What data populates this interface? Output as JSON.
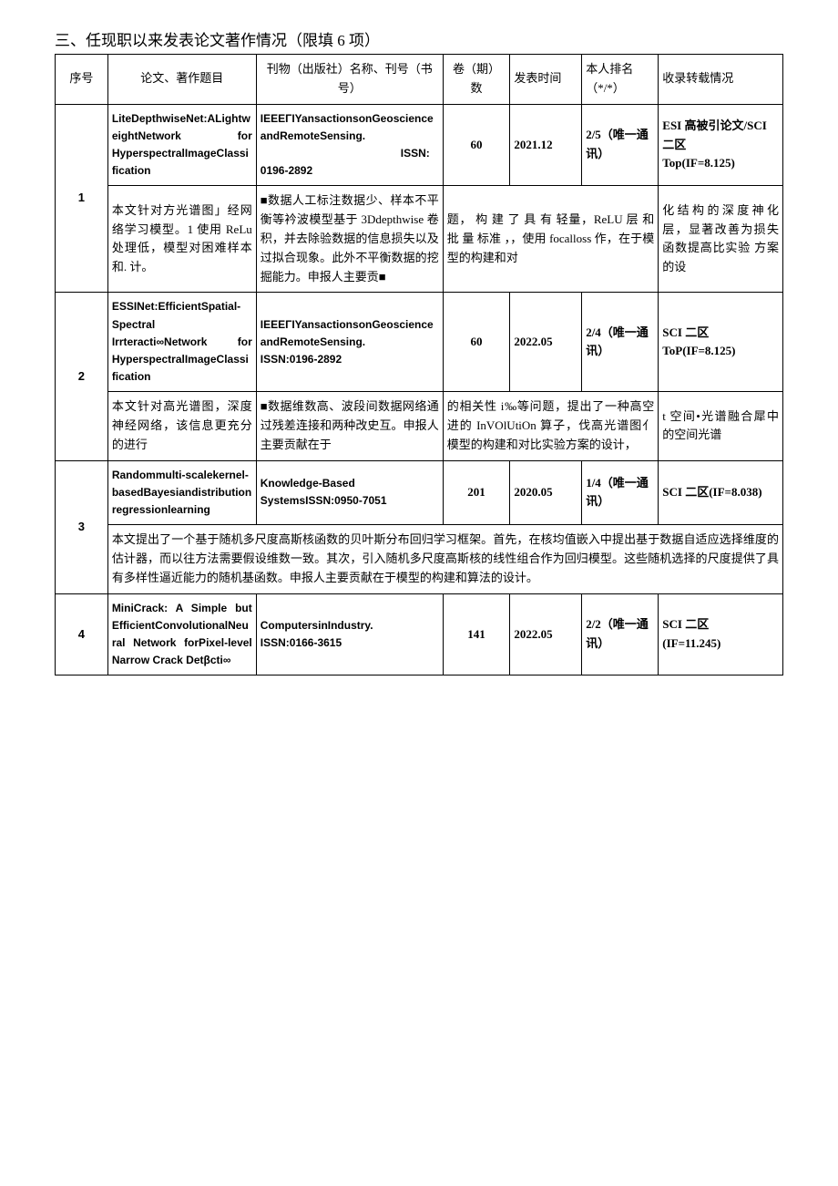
{
  "section_title": "三、任现职以来发表论文著作情况（限填 6 项）",
  "headers": {
    "no": "序号",
    "title": "论文、著作题目",
    "journal": "刊物（出版社）名称、刊号（书号）",
    "volume": "卷（期）数",
    "date": "发表时间",
    "rank": "本人排名（*/*）",
    "index": "收录转载情况"
  },
  "rows": [
    {
      "no": "1",
      "title": "LiteDepthwiseNet:ALightweightNetwork for HyperspectralImageClassification",
      "journal_line1": "IEEEΓIYansactionsonGeoscienceandRemoteSensing.",
      "journal_issn_label": "ISSN:",
      "journal_issn": "0196-2892",
      "volume": "60",
      "date": "2021.12",
      "rank": "2/5（唯一通讯）",
      "index": "ESI 高被引论文/SCI 二区\nTop(IF=8.125)",
      "desc_c1": "本文针对方光谱图」经网络学习模型。1 使用 ReLu 处理低，模型对困难样本和. 计。",
      "desc_c2": "■数据人工标注数据少、样本不平衡等衿波模型基于 3Ddepthwise 卷积，并去除验数据的信息损失以及过拟合现象。此外不平衡数据的挖掘能力。申报人主要贡■",
      "desc_c3": "题， 构 建 了 具 有 轻量，ReLU 层 和 批 量 标准 ，，使用 focalloss 作，在于模型的构建和对",
      "desc_c4": "化结构的深度神化层，显著改善为损失函数提高比实验 方案的设"
    },
    {
      "no": "2",
      "title": "ESSINet:EfficientSpatial- Spectral Irrteracti∞Network for HyperspectralImageClassification",
      "journal_line1": "IEEEΓIYansactionsonGeoscienceandRemoteSensing.\nISSN:0196-2892",
      "volume": "60",
      "date": "2022.05",
      "rank": "2/4（唯一通讯）",
      "index": "SCI 二区\nToP(IF=8.125)",
      "desc_c1": "本文针对高光谱图，深度神经网络，该信息更充分的进行",
      "desc_c2": "■数据维数高、波段间数据网络通过残差连接和两种改史互。申报人主要贡献在于",
      "desc_c3": "的相关性 i‰等问题，提出了一种高空进的 InVOlUtiOn 算子，伐高光谱图亻模型的构建和对比实验方案的设计，",
      "desc_c4": "t 空间•光谱融合犀中的空间光谱"
    },
    {
      "no": "3",
      "title": "Randommulti-scalekernel-basedBayesiandistributionregressionlearning",
      "journal_line1": "Knowledge-Based SystemsISSN:0950-7051",
      "volume": "201",
      "date": "2020.05",
      "rank": "1/4（唯一通讯）",
      "index": "SCI 二区(IF=8.038)",
      "desc_full": "本文提出了一个基于随机多尺度高斯核函数的贝叶斯分布回归学习框架。首先，在核均值嵌入中提出基于数据自适应选择维度的估计器，而以往方法需要假设维数一致。其次，引入随机多尺度高斯核的线性组合作为回归模型。这些随机选择的尺度提供了具有多样性逼近能力的随机基函数。申报人主要贡献在于模型的构建和算法的设计。"
    },
    {
      "no": "4",
      "title": "MiniCrack: A Simple but EfficientConvolutionalNeural Network forPixel-level Narrow Crack Detβcti∞",
      "journal_line1": "ComputersinIndustry.\nISSN:0166-3615",
      "volume": "141",
      "date": "2022.05",
      "rank": "2/2（唯一通讯）",
      "index": "SCI 二区\n(IF=11.245)"
    }
  ]
}
